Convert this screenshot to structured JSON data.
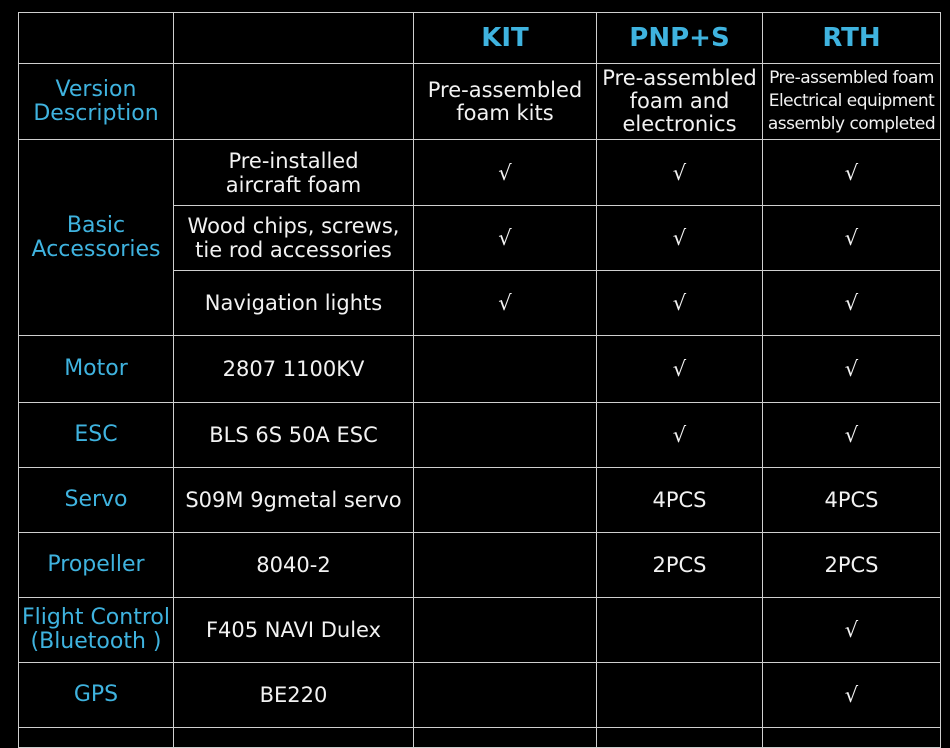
{
  "header": {
    "columns": [
      "KIT",
      "PNP+S",
      "RTH"
    ]
  },
  "rows": [
    {
      "label": [
        "Version",
        "Description"
      ],
      "kit": [
        "Pre-assembled",
        "foam kits"
      ],
      "pnp": [
        "Pre-assembled",
        "foam and",
        "electronics"
      ],
      "rth": [
        "Pre-assembled foam",
        "Electrical equipment",
        "assembly completed"
      ]
    },
    {
      "label": [
        "Basic",
        "Accessories"
      ],
      "items": [
        {
          "item": [
            "Pre-installed",
            "aircraft foam"
          ],
          "kit": "√",
          "pnp": "√",
          "rth": "√"
        },
        {
          "item": [
            "Wood chips, screws,",
            "tie rod accessories"
          ],
          "kit": "√",
          "pnp": "√",
          "rth": "√"
        },
        {
          "item": [
            "Navigation lights"
          ],
          "kit": "√",
          "pnp": "√",
          "rth": "√"
        }
      ]
    },
    {
      "label": [
        "Motor"
      ],
      "item": [
        "2807 1100KV"
      ],
      "pnp": "√",
      "rth": "√"
    },
    {
      "label": [
        "ESC"
      ],
      "item": [
        "BLS  6S 50A ESC"
      ],
      "pnp": "√",
      "rth": "√"
    },
    {
      "label": [
        "Servo"
      ],
      "item": [
        "S09M 9gmetal servo"
      ],
      "pnp": "4PCS",
      "rth": "4PCS"
    },
    {
      "label": [
        "Propeller"
      ],
      "item": [
        "8040-2"
      ],
      "pnp": "2PCS",
      "rth": "2PCS"
    },
    {
      "label": [
        "Flight Control",
        "(Bluetooth )"
      ],
      "item": [
        "F405 NAVI Dulex"
      ],
      "rth": "√"
    },
    {
      "label": [
        "GPS"
      ],
      "item": [
        "BE220"
      ],
      "rth": "√"
    }
  ]
}
